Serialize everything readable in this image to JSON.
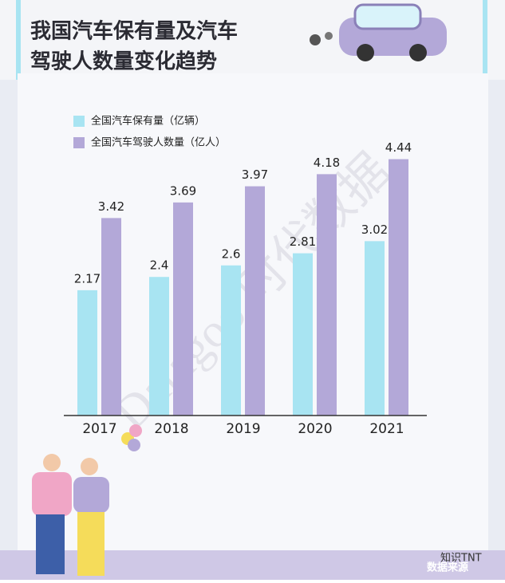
{
  "chart_data": {
    "type": "bar",
    "title": [
      "我国汽车保有量及汽车",
      "驾驶人数量变化趋势"
    ],
    "categories": [
      "2017",
      "2018",
      "2019",
      "2020",
      "2021"
    ],
    "series": [
      {
        "name": "全国汽车保有量（亿辆）",
        "color": "#a8e4f2",
        "values": [
          2.17,
          2.4,
          2.6,
          2.81,
          3.02
        ]
      },
      {
        "name": "全国汽车驾驶人数量（亿人）",
        "color": "#b3a8d8",
        "values": [
          3.42,
          3.69,
          3.97,
          4.18,
          4.44
        ]
      }
    ],
    "ylim": [
      0,
      5
    ],
    "watermark": "Datagoo 时代数据",
    "source": "数据来源",
    "badge": "知识TNT"
  }
}
